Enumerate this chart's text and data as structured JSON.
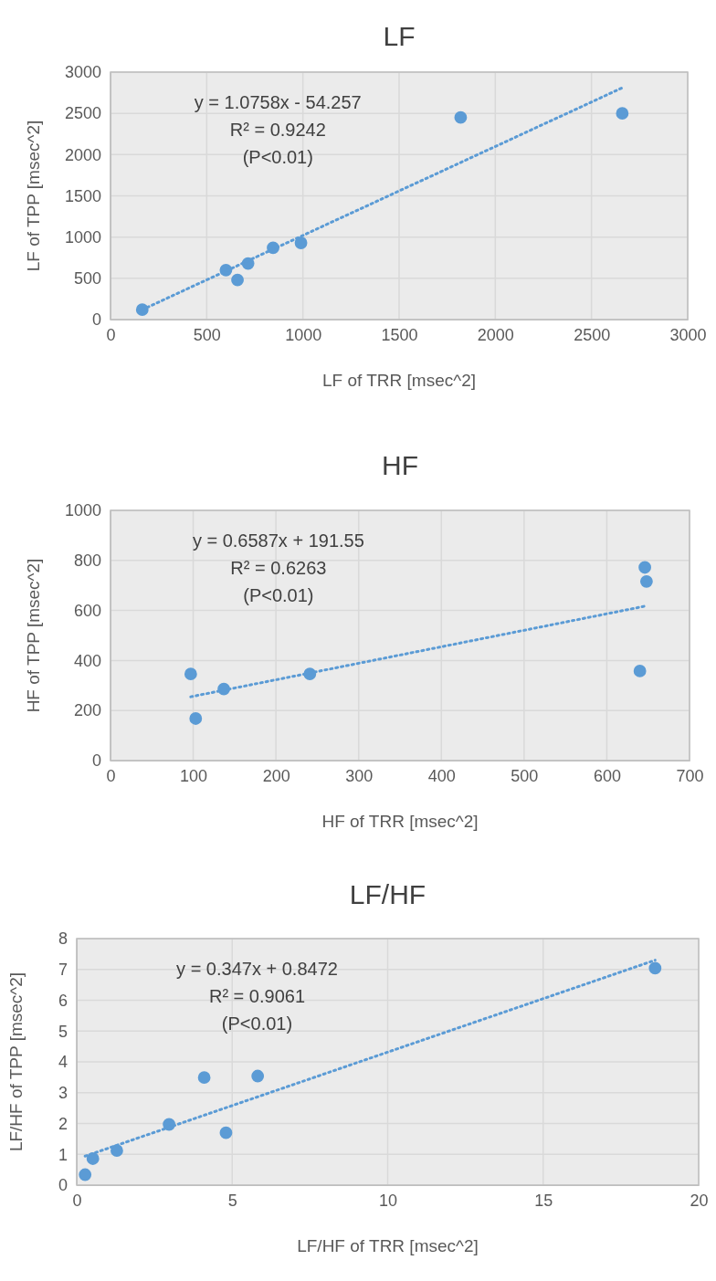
{
  "chart_data": [
    {
      "type": "scatter",
      "title": "LF",
      "xlabel": "LF of TRR [msec^2]",
      "ylabel": "LF of TPP [msec^2]",
      "xlim": [
        0,
        3000
      ],
      "ylim": [
        0,
        3000
      ],
      "xticks": [
        0,
        500,
        1000,
        1500,
        2000,
        2500,
        3000
      ],
      "yticks": [
        0,
        500,
        1000,
        1500,
        2000,
        2500,
        3000
      ],
      "grid": true,
      "annotations": [
        "y = 1.0758x - 54.257",
        "R² = 0.9242",
        "(P<0.01)"
      ],
      "series": [
        {
          "type": "scatter",
          "color": "#5b9bd5",
          "marker": "circle",
          "x": [
            165,
            600,
            660,
            715,
            845,
            990,
            1820,
            2660
          ],
          "values": [
            120,
            600,
            480,
            680,
            870,
            930,
            2450,
            2500
          ]
        },
        {
          "type": "line",
          "color": "#5b9bd5",
          "marker": "none",
          "line_style": "dotted",
          "x": [
            165,
            2660
          ],
          "values": [
            120,
            2810
          ]
        }
      ]
    },
    {
      "type": "scatter",
      "title": "HF",
      "xlabel": "HF of TRR [msec^2]",
      "ylabel": "HF of TPP [msec^2]",
      "xlim": [
        0,
        700
      ],
      "ylim": [
        0,
        1000
      ],
      "xticks": [
        0,
        100,
        200,
        300,
        400,
        500,
        600,
        700
      ],
      "yticks": [
        0,
        200,
        400,
        600,
        800,
        1000
      ],
      "grid": true,
      "annotations": [
        "y = 0.6587x + 191.55",
        "R² = 0.6263",
        "(P<0.01)"
      ],
      "series": [
        {
          "type": "scatter",
          "color": "#5b9bd5",
          "marker": "circle",
          "x": [
            97,
            103,
            137,
            241,
            640,
            646,
            648
          ],
          "values": [
            346,
            168,
            286,
            346,
            358,
            772,
            716
          ]
        },
        {
          "type": "line",
          "color": "#5b9bd5",
          "marker": "none",
          "line_style": "dotted",
          "x": [
            97,
            646
          ],
          "values": [
            255,
            617
          ]
        }
      ]
    },
    {
      "type": "scatter",
      "title": "LF/HF",
      "xlabel": "LF/HF of TRR [msec^2]",
      "ylabel": "LF/HF of TPP [msec^2]",
      "xlim": [
        0,
        20
      ],
      "ylim": [
        0,
        8
      ],
      "xticks": [
        0,
        5,
        10,
        15,
        20
      ],
      "yticks": [
        0,
        1,
        2,
        3,
        4,
        5,
        6,
        7,
        8
      ],
      "grid": true,
      "annotations": [
        "y = 0.347x + 0.8472",
        "R² = 0.9061",
        "(P<0.01)"
      ],
      "series": [
        {
          "type": "scatter",
          "color": "#5b9bd5",
          "marker": "circle",
          "x": [
            0.27,
            0.52,
            1.29,
            2.97,
            4.1,
            4.8,
            5.82,
            18.6
          ],
          "values": [
            0.34,
            0.86,
            1.12,
            1.97,
            3.49,
            1.7,
            3.54,
            7.04
          ]
        },
        {
          "type": "line",
          "color": "#5b9bd5",
          "marker": "none",
          "line_style": "dotted",
          "x": [
            0.27,
            18.6
          ],
          "values": [
            0.94,
            7.3
          ]
        }
      ]
    }
  ]
}
